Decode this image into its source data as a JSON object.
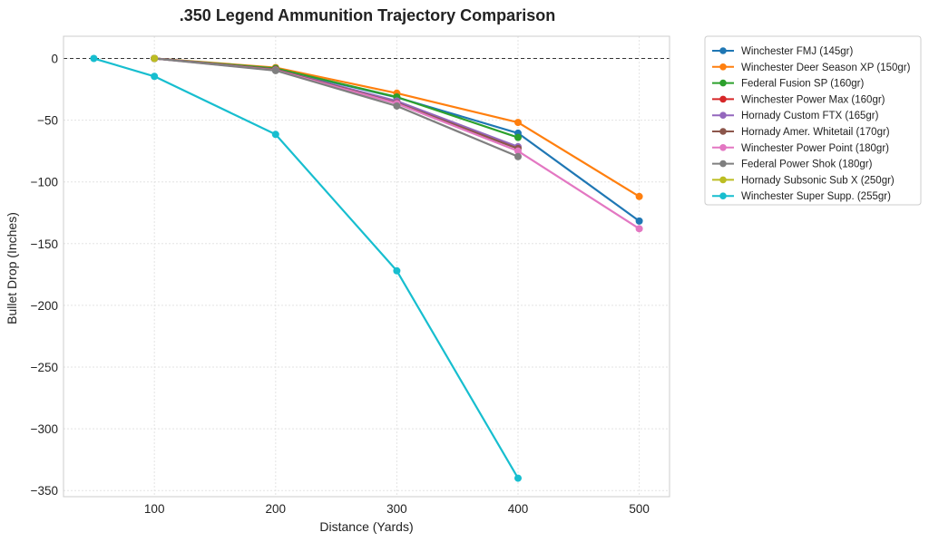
{
  "chart_data": {
    "type": "line",
    "title": ".350 Legend Ammunition Trajectory Comparison",
    "xlabel": "Distance (Yards)",
    "ylabel": "Bullet Drop (Inches)",
    "xlim": [
      25,
      525
    ],
    "ylim": [
      -355,
      18
    ],
    "xticks": [
      100,
      200,
      300,
      400,
      500
    ],
    "yticks": [
      0,
      -50,
      -100,
      -150,
      -200,
      -250,
      -300,
      -350
    ],
    "xtick_labels": [
      "100",
      "200",
      "300",
      "400",
      "500"
    ],
    "ytick_labels": [
      "0",
      "−50",
      "−100",
      "−150",
      "−200",
      "−250",
      "−300",
      "−350"
    ],
    "grid": true,
    "zero_reference_line": 0,
    "legend_position": "outside-upper-right",
    "series": [
      {
        "name": "Winchester FMJ (145gr)",
        "color": "#1f77b4",
        "x": [
          100,
          200,
          300,
          400,
          500
        ],
        "y": [
          0,
          -8.6,
          -31.5,
          -60.5,
          -131.7
        ]
      },
      {
        "name": "Winchester Deer Season XP (150gr)",
        "color": "#ff7f0e",
        "x": [
          100,
          200,
          300,
          400,
          500
        ],
        "y": [
          0,
          -7.4,
          -28.1,
          -51.8,
          -111.8
        ]
      },
      {
        "name": "Federal Fusion SP (160gr)",
        "color": "#2ca02c",
        "x": [
          100,
          200,
          300,
          400
        ],
        "y": [
          0,
          -8.0,
          -31.2,
          -64.0
        ]
      },
      {
        "name": "Winchester Power Max (160gr)",
        "color": "#d62728",
        "x": [
          100,
          200,
          300,
          400
        ],
        "y": [
          0,
          -9.0,
          -35.0,
          -72.0
        ]
      },
      {
        "name": "Hornady Custom FTX (165gr)",
        "color": "#9467bd",
        "x": [
          100,
          200,
          300,
          400
        ],
        "y": [
          0,
          -9.0,
          -34.5,
          -71.5
        ]
      },
      {
        "name": "Hornady Amer. Whitetail (170gr)",
        "color": "#8c564b",
        "x": [
          100,
          200,
          300,
          400
        ],
        "y": [
          0,
          -9.0,
          -36.0,
          -73.0
        ]
      },
      {
        "name": "Winchester Power Point (180gr)",
        "color": "#e377c2",
        "x": [
          100,
          200,
          300,
          400,
          500
        ],
        "y": [
          0,
          -9.5,
          -36.5,
          -75.0,
          -137.9
        ]
      },
      {
        "name": "Federal Power Shok (180gr)",
        "color": "#7f7f7f",
        "x": [
          100,
          200,
          300,
          400
        ],
        "y": [
          0,
          -9.8,
          -38.5,
          -79.5
        ]
      },
      {
        "name": "Hornady Subsonic Sub X (250gr)",
        "color": "#bcbd22",
        "x": [
          100
        ],
        "y": [
          0
        ]
      },
      {
        "name": "Winchester Super Supp. (255gr)",
        "color": "#17becf",
        "x": [
          50,
          100,
          200,
          300,
          400
        ],
        "y": [
          0,
          -14.5,
          -61.5,
          -172.0,
          -340.0
        ]
      }
    ]
  }
}
